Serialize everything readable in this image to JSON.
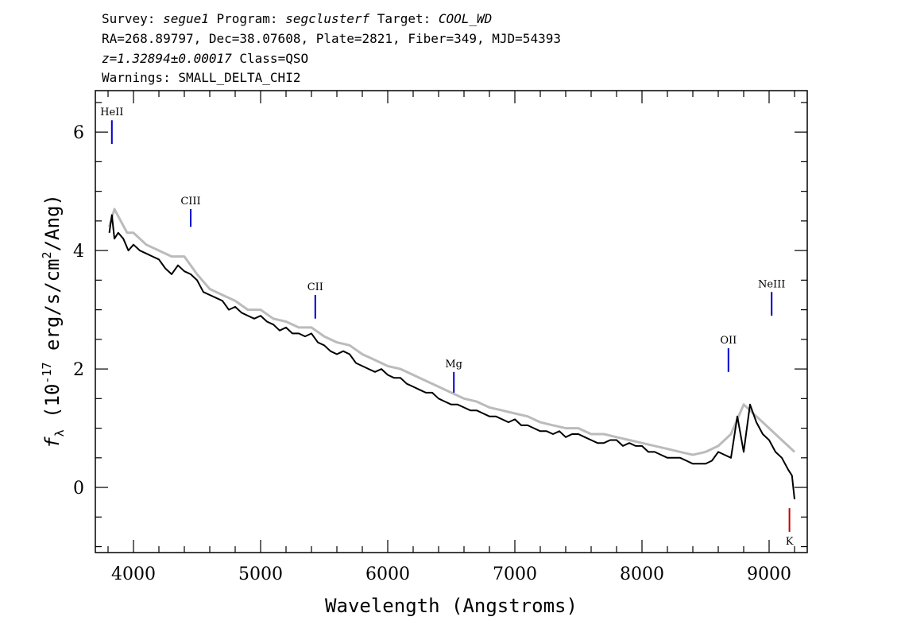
{
  "header": {
    "line1": {
      "survey_label": "Survey: ",
      "survey": "segue1",
      "program_label": " Program: ",
      "program": "segclusterf",
      "target_label": " Target: ",
      "target": "COOL_WD"
    },
    "line2": "RA=268.89797, Dec=38.07608, Plate=2821, Fiber=349, MJD=54393",
    "line3": {
      "z": "z=1.32894±0.00017",
      "class": " Class=QSO"
    },
    "line4": "Warnings: SMALL_DELTA_CHI2"
  },
  "chart_data": {
    "type": "line",
    "xlabel": "Wavelength (Angstroms)",
    "ylabel": {
      "prefix": "f",
      "subscript": "λ",
      "open": " (10",
      "exp": "-17",
      "mid": " erg/s/cm",
      "exp2": "2",
      "close": "/Ang)"
    },
    "xlim": [
      3700,
      9300
    ],
    "ylim": [
      -1.1,
      6.7
    ],
    "x_ticks": [
      4000,
      5000,
      6000,
      7000,
      8000,
      9000
    ],
    "y_ticks": [
      0,
      2,
      4,
      6
    ],
    "x_ticks_labels": [
      "4000",
      "5000",
      "6000",
      "7000",
      "8000",
      "9000"
    ],
    "y_ticks_labels": [
      "0",
      "2",
      "4",
      "6"
    ],
    "grid": false,
    "series": [
      {
        "color": "#000000",
        "x": [
          3810,
          3830,
          3850,
          3880,
          3920,
          3960,
          4000,
          4050,
          4100,
          4150,
          4200,
          4250,
          4300,
          4350,
          4400,
          4450,
          4500,
          4550,
          4600,
          4650,
          4700,
          4750,
          4800,
          4850,
          4900,
          4950,
          5000,
          5050,
          5100,
          5150,
          5200,
          5250,
          5300,
          5350,
          5400,
          5450,
          5500,
          5550,
          5600,
          5650,
          5700,
          5750,
          5800,
          5850,
          5900,
          5950,
          6000,
          6050,
          6100,
          6150,
          6200,
          6250,
          6300,
          6350,
          6400,
          6450,
          6500,
          6550,
          6600,
          6650,
          6700,
          6750,
          6800,
          6850,
          6900,
          6950,
          7000,
          7050,
          7100,
          7150,
          7200,
          7250,
          7300,
          7350,
          7400,
          7450,
          7500,
          7550,
          7600,
          7650,
          7700,
          7750,
          7800,
          7850,
          7900,
          7950,
          8000,
          8050,
          8100,
          8150,
          8200,
          8250,
          8300,
          8350,
          8400,
          8450,
          8500,
          8550,
          8600,
          8650,
          8700,
          8750,
          8800,
          8850,
          8900,
          8950,
          9000,
          9050,
          9100,
          9150,
          9180,
          9200
        ],
        "y": [
          4.3,
          4.6,
          4.2,
          4.3,
          4.2,
          4.0,
          4.1,
          4.0,
          3.95,
          3.9,
          3.85,
          3.7,
          3.6,
          3.75,
          3.65,
          3.6,
          3.5,
          3.3,
          3.25,
          3.2,
          3.15,
          3.0,
          3.05,
          2.95,
          2.9,
          2.85,
          2.9,
          2.8,
          2.75,
          2.65,
          2.7,
          2.6,
          2.6,
          2.55,
          2.6,
          2.45,
          2.4,
          2.3,
          2.25,
          2.3,
          2.25,
          2.1,
          2.05,
          2.0,
          1.95,
          2.0,
          1.9,
          1.85,
          1.85,
          1.75,
          1.7,
          1.65,
          1.6,
          1.6,
          1.5,
          1.45,
          1.4,
          1.4,
          1.35,
          1.3,
          1.3,
          1.25,
          1.2,
          1.2,
          1.15,
          1.1,
          1.15,
          1.05,
          1.05,
          1.0,
          0.95,
          0.95,
          0.9,
          0.95,
          0.85,
          0.9,
          0.9,
          0.85,
          0.8,
          0.75,
          0.75,
          0.8,
          0.8,
          0.7,
          0.75,
          0.7,
          0.7,
          0.6,
          0.6,
          0.55,
          0.5,
          0.5,
          0.5,
          0.45,
          0.4,
          0.4,
          0.4,
          0.45,
          0.6,
          0.55,
          0.5,
          1.2,
          0.6,
          1.4,
          1.1,
          0.9,
          0.8,
          0.6,
          0.5,
          0.3,
          0.2,
          -0.2
        ]
      },
      {
        "color": "#bbbbbb",
        "x": [
          3810,
          3850,
          3900,
          3950,
          4000,
          4100,
          4200,
          4300,
          4400,
          4500,
          4600,
          4700,
          4800,
          4900,
          5000,
          5100,
          5200,
          5300,
          5400,
          5500,
          5600,
          5700,
          5800,
          5900,
          6000,
          6100,
          6200,
          6300,
          6400,
          6500,
          6600,
          6700,
          6800,
          6900,
          7000,
          7100,
          7200,
          7300,
          7400,
          7500,
          7600,
          7700,
          7800,
          7900,
          8000,
          8100,
          8200,
          8300,
          8400,
          8500,
          8600,
          8700,
          8800,
          8900,
          9000,
          9100,
          9200
        ],
        "y": [
          4.4,
          4.7,
          4.5,
          4.3,
          4.3,
          4.1,
          4.0,
          3.9,
          3.9,
          3.6,
          3.35,
          3.25,
          3.15,
          3.0,
          3.0,
          2.85,
          2.8,
          2.7,
          2.7,
          2.55,
          2.45,
          2.4,
          2.25,
          2.15,
          2.05,
          2.0,
          1.9,
          1.8,
          1.7,
          1.6,
          1.5,
          1.45,
          1.35,
          1.3,
          1.25,
          1.2,
          1.1,
          1.05,
          1.0,
          1.0,
          0.9,
          0.9,
          0.85,
          0.8,
          0.75,
          0.7,
          0.65,
          0.6,
          0.55,
          0.6,
          0.7,
          0.9,
          1.4,
          1.2,
          1.0,
          0.8,
          0.6
        ]
      }
    ],
    "line_markers": [
      {
        "label": "HeII",
        "x": 3830,
        "y_bottom": 5.8,
        "y_top": 6.2,
        "color": "#0000cc"
      },
      {
        "label": "CIII",
        "x": 4450,
        "y_bottom": 4.4,
        "y_top": 4.7,
        "color": "#0000cc"
      },
      {
        "label": "CII",
        "x": 5430,
        "y_bottom": 2.85,
        "y_top": 3.25,
        "color": "#0000cc"
      },
      {
        "label": "Mg",
        "x": 6520,
        "y_bottom": 1.6,
        "y_top": 1.95,
        "color": "#0000cc"
      },
      {
        "label": "OII",
        "x": 8680,
        "y_bottom": 1.95,
        "y_top": 2.35,
        "color": "#0000cc"
      },
      {
        "label": "NeIII",
        "x": 9020,
        "y_bottom": 2.9,
        "y_top": 3.3,
        "color": "#0000cc"
      },
      {
        "label": "K",
        "x": 9160,
        "y_bottom": -0.75,
        "y_top": -0.35,
        "color": "#cc0000",
        "label_below": true
      }
    ]
  }
}
